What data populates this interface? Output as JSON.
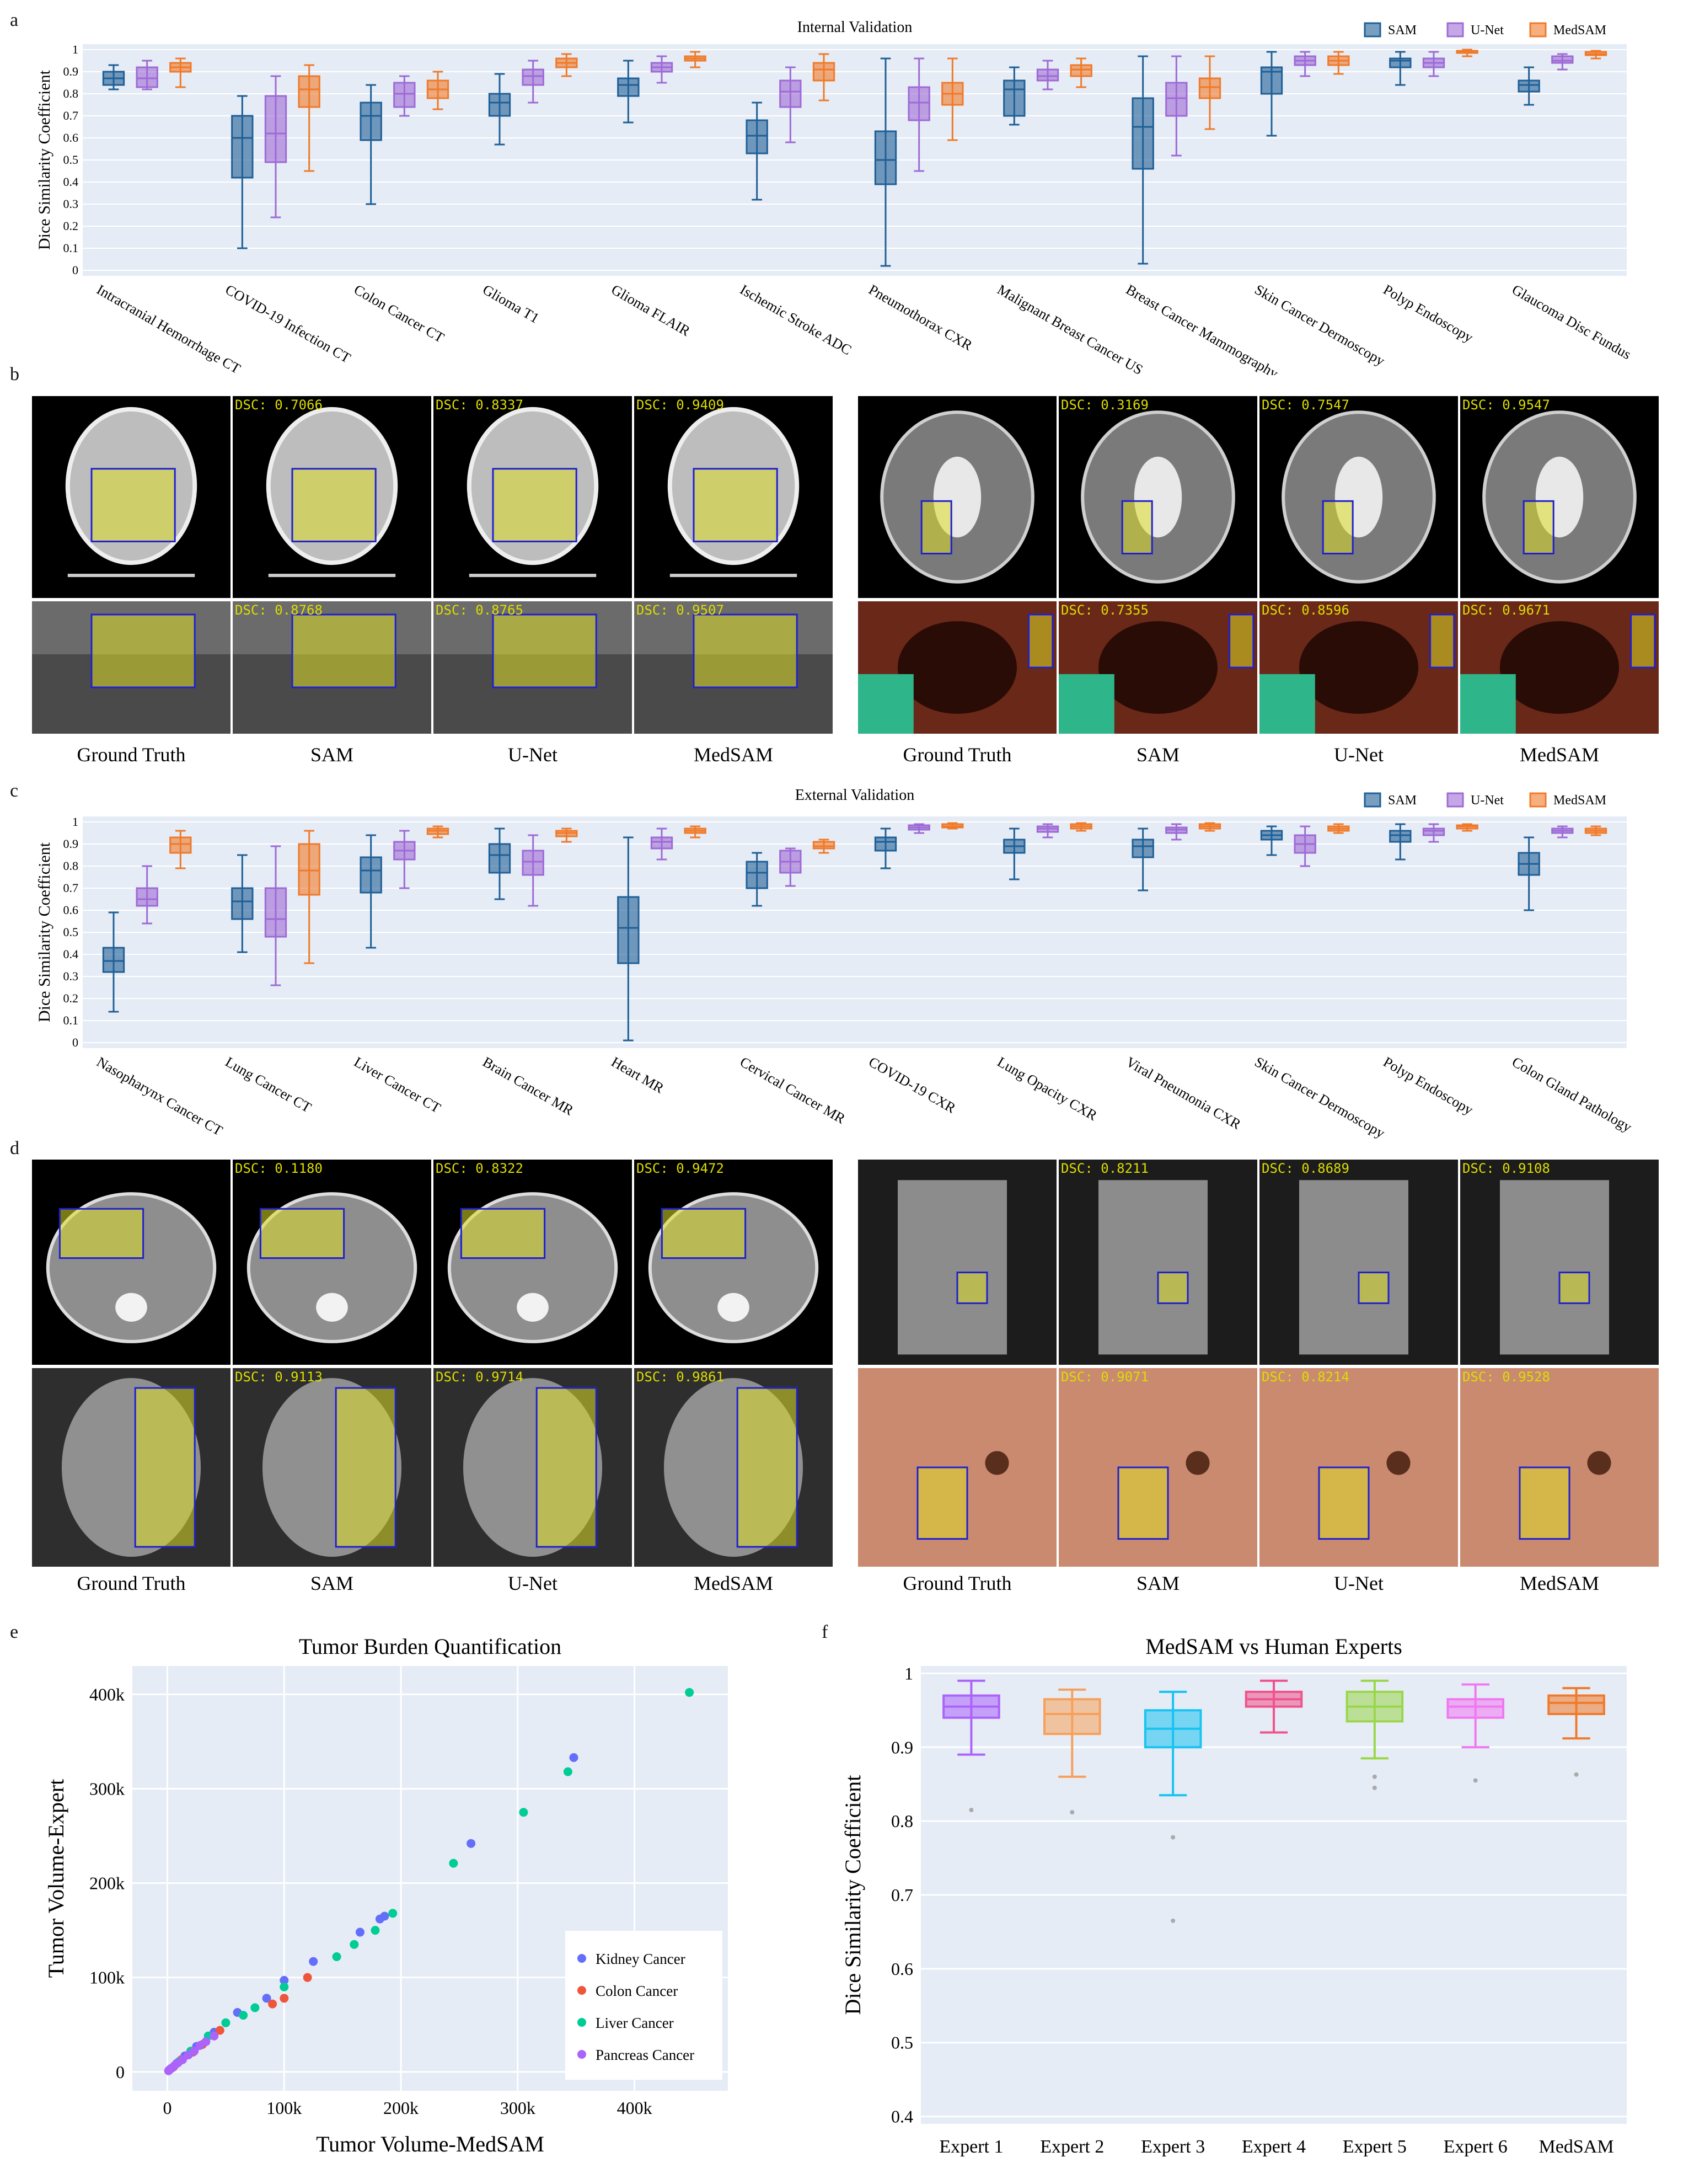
{
  "letters": {
    "a": "a",
    "b": "b",
    "c": "c",
    "d": "d",
    "e": "e",
    "f": "f"
  },
  "colors": {
    "sam": "#1f5f96",
    "unet": "#9e6ad6",
    "medsam": "#f07a2a",
    "plot_bg": "#e5ecf6",
    "highlight": "#dddd00"
  },
  "legend": {
    "sam": "SAM",
    "unet": "U-Net",
    "medsam": "MedSAM"
  },
  "chart_data": [
    {
      "type": "box",
      "title": "Internal Validation",
      "ylabel": "Dice Similarity Coefficient",
      "ylim": [
        0,
        1
      ],
      "yticks": [
        "0",
        "0.1",
        "0.2",
        "0.3",
        "0.4",
        "0.5",
        "0.6",
        "0.7",
        "0.8",
        "0.9",
        "1"
      ],
      "categories": [
        "Intracranial Hemorrhage CT",
        "COVID-19 Infection CT",
        "Colon Cancer CT",
        "Glioma T1",
        "Glioma FLAIR",
        "Ischemic Stroke ADC",
        "Pneumothorax CXR",
        "Malignant Breast Cancer US",
        "Breast Cancer Mammography",
        "Skin Cancer Dermoscopy",
        "Polyp Endoscopy",
        "Glaucoma Disc Fundus"
      ],
      "series": [
        {
          "name": "SAM",
          "boxes": [
            [
              0.82,
              0.84,
              0.87,
              0.9,
              0.93
            ],
            [
              0.1,
              0.42,
              0.6,
              0.7,
              0.79
            ],
            [
              0.3,
              0.59,
              0.7,
              0.76,
              0.84
            ],
            [
              0.57,
              0.7,
              0.76,
              0.8,
              0.89
            ],
            [
              0.67,
              0.79,
              0.84,
              0.87,
              0.95
            ],
            [
              0.32,
              0.53,
              0.61,
              0.68,
              0.76
            ],
            [
              0.02,
              0.39,
              0.5,
              0.63,
              0.96
            ],
            [
              0.66,
              0.7,
              0.82,
              0.86,
              0.92
            ],
            [
              0.03,
              0.46,
              0.65,
              0.78,
              0.97
            ],
            [
              0.61,
              0.8,
              0.9,
              0.92,
              0.99
            ],
            [
              0.84,
              0.92,
              0.95,
              0.96,
              0.99
            ],
            [
              0.75,
              0.81,
              0.84,
              0.86,
              0.92
            ]
          ]
        },
        {
          "name": "U-Net",
          "boxes": [
            [
              0.82,
              0.83,
              0.87,
              0.92,
              0.95
            ],
            [
              0.24,
              0.49,
              0.62,
              0.79,
              0.88
            ],
            [
              0.7,
              0.74,
              0.8,
              0.85,
              0.88
            ],
            [
              0.76,
              0.84,
              0.88,
              0.91,
              0.95
            ],
            [
              0.85,
              0.9,
              0.92,
              0.94,
              0.97
            ],
            [
              0.58,
              0.74,
              0.81,
              0.86,
              0.92
            ],
            [
              0.45,
              0.68,
              0.76,
              0.83,
              0.96
            ],
            [
              0.82,
              0.86,
              0.88,
              0.91,
              0.95
            ],
            [
              0.52,
              0.7,
              0.78,
              0.85,
              0.97
            ],
            [
              0.88,
              0.93,
              0.95,
              0.97,
              0.99
            ],
            [
              0.88,
              0.92,
              0.94,
              0.96,
              0.99
            ],
            [
              0.91,
              0.94,
              0.95,
              0.97,
              0.98
            ]
          ]
        },
        {
          "name": "MedSAM",
          "boxes": [
            [
              0.83,
              0.9,
              0.92,
              0.94,
              0.96
            ],
            [
              0.45,
              0.74,
              0.82,
              0.88,
              0.93
            ],
            [
              0.73,
              0.78,
              0.82,
              0.86,
              0.9
            ],
            [
              0.88,
              0.92,
              0.94,
              0.96,
              0.98
            ],
            [
              0.92,
              0.95,
              0.96,
              0.97,
              0.99
            ],
            [
              0.77,
              0.86,
              0.91,
              0.94,
              0.98
            ],
            [
              0.59,
              0.75,
              0.8,
              0.85,
              0.96
            ],
            [
              0.83,
              0.88,
              0.91,
              0.93,
              0.96
            ],
            [
              0.64,
              0.78,
              0.83,
              0.87,
              0.97
            ],
            [
              0.89,
              0.93,
              0.95,
              0.97,
              0.99
            ],
            [
              0.97,
              0.985,
              0.99,
              0.995,
              1.0
            ],
            [
              0.96,
              0.975,
              0.98,
              0.99,
              0.995
            ]
          ]
        }
      ],
      "legend_position": "top-right"
    },
    {
      "type": "box",
      "title": "External Validation",
      "ylabel": "Dice Similarity Coefficient",
      "ylim": [
        0,
        1
      ],
      "yticks": [
        "0",
        "0.1",
        "0.2",
        "0.3",
        "0.4",
        "0.5",
        "0.6",
        "0.7",
        "0.8",
        "0.9",
        "1"
      ],
      "categories": [
        "Nasopharynx Cancer CT",
        "Lung Cancer CT",
        "Liver Cancer CT",
        "Brain Cancer MR",
        "Heart MR",
        "Cervical Cancer MR",
        "COVID-19 CXR",
        "Lung Opacity CXR",
        "Viral Pneumonia CXR",
        "Skin Cancer Dermoscopy",
        "Polyp Endoscopy",
        "Colon Gland Pathology"
      ],
      "series": [
        {
          "name": "SAM",
          "boxes": [
            [
              0.14,
              0.32,
              0.37,
              0.43,
              0.59
            ],
            [
              0.41,
              0.56,
              0.64,
              0.7,
              0.85
            ],
            [
              0.43,
              0.68,
              0.78,
              0.84,
              0.94
            ],
            [
              0.65,
              0.77,
              0.85,
              0.9,
              0.97
            ],
            [
              0.01,
              0.36,
              0.52,
              0.66,
              0.93
            ],
            [
              0.62,
              0.7,
              0.77,
              0.82,
              0.86
            ],
            [
              0.79,
              0.87,
              0.91,
              0.93,
              0.97
            ],
            [
              0.74,
              0.86,
              0.89,
              0.92,
              0.97
            ],
            [
              0.69,
              0.84,
              0.89,
              0.92,
              0.97
            ],
            [
              0.85,
              0.92,
              0.94,
              0.96,
              0.98
            ],
            [
              0.83,
              0.91,
              0.94,
              0.96,
              0.99
            ],
            [
              0.6,
              0.76,
              0.81,
              0.86,
              0.93
            ]
          ]
        },
        {
          "name": "U-Net",
          "boxes": [
            [
              0.54,
              0.62,
              0.65,
              0.7,
              0.8
            ],
            [
              0.26,
              0.48,
              0.56,
              0.7,
              0.89
            ],
            [
              0.7,
              0.83,
              0.87,
              0.91,
              0.96
            ],
            [
              0.62,
              0.76,
              0.82,
              0.87,
              0.94
            ],
            [
              0.83,
              0.88,
              0.91,
              0.93,
              0.97
            ],
            [
              0.71,
              0.77,
              0.82,
              0.87,
              0.88
            ],
            [
              0.95,
              0.965,
              0.975,
              0.985,
              0.99
            ],
            [
              0.93,
              0.955,
              0.97,
              0.98,
              0.99
            ],
            [
              0.92,
              0.95,
              0.965,
              0.975,
              0.99
            ],
            [
              0.8,
              0.86,
              0.9,
              0.94,
              0.98
            ],
            [
              0.91,
              0.94,
              0.96,
              0.97,
              0.99
            ],
            [
              0.93,
              0.95,
              0.96,
              0.97,
              0.98
            ]
          ]
        },
        {
          "name": "MedSAM",
          "boxes": [
            [
              0.79,
              0.86,
              0.9,
              0.93,
              0.96
            ],
            [
              0.36,
              0.67,
              0.78,
              0.9,
              0.96
            ],
            [
              0.93,
              0.945,
              0.96,
              0.97,
              0.98
            ],
            [
              0.91,
              0.935,
              0.95,
              0.96,
              0.97
            ],
            [
              0.93,
              0.95,
              0.96,
              0.97,
              0.98
            ],
            [
              0.86,
              0.88,
              0.89,
              0.91,
              0.92
            ],
            [
              0.97,
              0.975,
              0.98,
              0.99,
              0.995
            ],
            [
              0.96,
              0.97,
              0.98,
              0.99,
              0.995
            ],
            [
              0.96,
              0.97,
              0.98,
              0.99,
              0.995
            ],
            [
              0.95,
              0.96,
              0.97,
              0.98,
              0.99
            ],
            [
              0.96,
              0.97,
              0.98,
              0.985,
              0.99
            ],
            [
              0.94,
              0.95,
              0.96,
              0.97,
              0.98
            ]
          ]
        }
      ],
      "legend_position": "top-right"
    },
    {
      "type": "scatter",
      "title": "Tumor Burden Quantification",
      "xlabel": "Tumor Volume-MedSAM",
      "ylabel": "Tumor Volume-Expert",
      "xlim": [
        -30000,
        480000
      ],
      "ylim": [
        -20000,
        430000
      ],
      "xticks": [
        0,
        100000,
        200000,
        300000,
        400000
      ],
      "xtick_labels": [
        "0",
        "100k",
        "200k",
        "300k",
        "400k"
      ],
      "yticks": [
        0,
        100000,
        200000,
        300000,
        400000
      ],
      "ytick_labels": [
        "0",
        "100k",
        "200k",
        "300k",
        "400k"
      ],
      "legend_position": "bottom-right",
      "series": [
        {
          "name": "Kidney Cancer",
          "color": "#636efa",
          "points": [
            [
              3000,
              3500
            ],
            [
              8000,
              9000
            ],
            [
              15000,
              17000
            ],
            [
              25000,
              27000
            ],
            [
              40000,
              42000
            ],
            [
              60000,
              63000
            ],
            [
              85000,
              78000
            ],
            [
              100000,
              97000
            ],
            [
              125000,
              117000
            ],
            [
              165000,
              148000
            ],
            [
              182000,
              162000
            ],
            [
              186000,
              165000
            ],
            [
              260000,
              242000
            ],
            [
              348000,
              333000
            ]
          ]
        },
        {
          "name": "Colon Cancer",
          "color": "#ef553b",
          "points": [
            [
              5000,
              5000
            ],
            [
              12000,
              13000
            ],
            [
              22000,
              21000
            ],
            [
              30000,
              29000
            ],
            [
              45000,
              44000
            ],
            [
              90000,
              72000
            ],
            [
              100000,
              78000
            ],
            [
              120000,
              100000
            ]
          ]
        },
        {
          "name": "Liver Cancer",
          "color": "#00cc96",
          "points": [
            [
              10000,
              11000
            ],
            [
              20000,
              22000
            ],
            [
              35000,
              38000
            ],
            [
              50000,
              52000
            ],
            [
              65000,
              60000
            ],
            [
              75000,
              68000
            ],
            [
              100000,
              90000
            ],
            [
              145000,
              122000
            ],
            [
              160000,
              135000
            ],
            [
              178000,
              150000
            ],
            [
              193000,
              168000
            ],
            [
              245000,
              221000
            ],
            [
              305000,
              275000
            ],
            [
              343000,
              318000
            ],
            [
              447000,
              402000
            ]
          ]
        },
        {
          "name": "Pancreas Cancer",
          "color": "#ab63fa",
          "points": [
            [
              1000,
              1200
            ],
            [
              2000,
              2500
            ],
            [
              4000,
              4200
            ],
            [
              6000,
              6500
            ],
            [
              9000,
              9500
            ],
            [
              13000,
              13000
            ],
            [
              18000,
              18000
            ],
            [
              23000,
              22000
            ],
            [
              28000,
              28000
            ],
            [
              33000,
              32000
            ],
            [
              40000,
              38000
            ]
          ]
        }
      ]
    },
    {
      "type": "box",
      "title": "MedSAM vs Human Experts",
      "ylabel": "Dice Similarity Coefficient",
      "ylim": [
        0.39,
        1.01
      ],
      "yticks": [
        0.4,
        0.5,
        0.6,
        0.7,
        0.8,
        0.9,
        1
      ],
      "ytick_labels": [
        "0.4",
        "0.5",
        "0.6",
        "0.7",
        "0.8",
        "0.9",
        "1"
      ],
      "categories": [
        "Expert 1",
        "Expert 2",
        "Expert 3",
        "Expert 4",
        "Expert 5",
        "Expert 6",
        "MedSAM"
      ],
      "colors": [
        "#ab63fa",
        "#f7a05a",
        "#19c3f0",
        "#f0528a",
        "#9ad64a",
        "#f078f0",
        "#f07a2a"
      ],
      "boxes": [
        [
          0.89,
          0.94,
          0.955,
          0.97,
          0.99
        ],
        [
          0.86,
          0.918,
          0.945,
          0.965,
          0.978
        ],
        [
          0.835,
          0.9,
          0.925,
          0.95,
          0.975
        ],
        [
          0.92,
          0.955,
          0.965,
          0.975,
          0.99
        ],
        [
          0.885,
          0.935,
          0.955,
          0.975,
          0.99
        ],
        [
          0.9,
          0.94,
          0.955,
          0.965,
          0.985
        ],
        [
          0.912,
          0.945,
          0.96,
          0.97,
          0.98
        ]
      ],
      "outliers": [
        [
          0.815
        ],
        [
          0.812
        ],
        [
          0.778,
          0.665
        ],
        [],
        [
          0.86,
          0.845
        ],
        [
          0.855
        ],
        [
          0.863
        ]
      ]
    }
  ],
  "panel_b": {
    "column_labels": [
      "Ground Truth",
      "SAM",
      "U-Net",
      "MedSAM"
    ],
    "left_top_dsc": [
      "DSC: 0.7066",
      "DSC: 0.8337",
      "DSC: 0.9409"
    ],
    "right_top_dsc": [
      "DSC: 0.3169",
      "DSC: 0.7547",
      "DSC: 0.9547"
    ],
    "left_bottom_dsc": [
      "DSC: 0.8768",
      "DSC: 0.8765",
      "DSC: 0.9507"
    ],
    "right_bottom_dsc": [
      "DSC: 0.7355",
      "DSC: 0.8596",
      "DSC: 0.9671"
    ]
  },
  "panel_d": {
    "column_labels": [
      "Ground Truth",
      "SAM",
      "U-Net",
      "MedSAM"
    ],
    "left_top_dsc": [
      "DSC: 0.1180",
      "DSC: 0.8322",
      "DSC: 0.9472"
    ],
    "right_top_dsc": [
      "DSC: 0.8211",
      "DSC: 0.8689",
      "DSC: 0.9108"
    ],
    "left_bottom_dsc": [
      "DSC: 0.9113",
      "DSC: 0.9714",
      "DSC: 0.9861"
    ],
    "right_bottom_dsc": [
      "DSC: 0.9071",
      "DSC: 0.8214",
      "DSC: 0.9528"
    ]
  }
}
